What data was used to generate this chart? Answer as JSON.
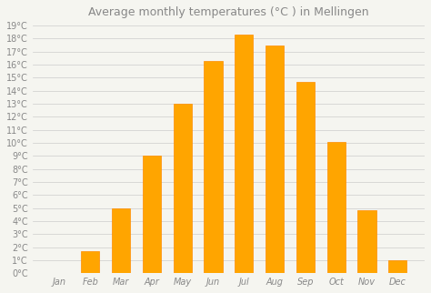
{
  "title": "Average monthly temperatures (°C ) in Mellingen",
  "months": [
    "Jan",
    "Feb",
    "Mar",
    "Apr",
    "May",
    "Jun",
    "Jul",
    "Aug",
    "Sep",
    "Oct",
    "Nov",
    "Dec"
  ],
  "values": [
    0,
    1.7,
    5.0,
    9.0,
    13.0,
    16.3,
    18.3,
    17.5,
    14.7,
    10.1,
    4.8,
    1.0
  ],
  "bar_color": "#FFA500",
  "bar_edge_color": "#FF8C00",
  "background_color": "#F5F5F0",
  "grid_color": "#CCCCCC",
  "ylim": [
    0,
    19
  ],
  "yticks": [
    0,
    1,
    2,
    3,
    4,
    5,
    6,
    7,
    8,
    9,
    10,
    11,
    12,
    13,
    14,
    15,
    16,
    17,
    18,
    19
  ],
  "title_fontsize": 9,
  "tick_fontsize": 7,
  "title_color": "#888888",
  "tick_color": "#888888"
}
